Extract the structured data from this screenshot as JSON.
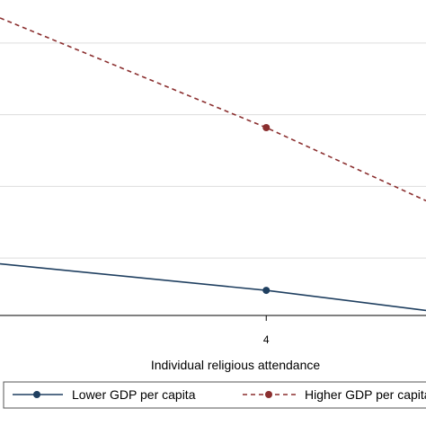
{
  "chart_data": {
    "type": "line",
    "xlabel": "Individual religious attendance",
    "x_ticks": [
      "4"
    ],
    "xlim": [
      1.5,
      5.5
    ],
    "ylim": [
      0,
      4.4
    ],
    "y_gridlines": [
      0.8,
      1.8,
      2.8,
      3.8
    ],
    "grid": true,
    "legend_placement": "bottom",
    "series": [
      {
        "name": "Lower GDP per capita",
        "color": "#1f3f60",
        "style": "solid",
        "marker": "circle",
        "x": [
          1.5,
          4,
          5.5
        ],
        "y": [
          0.72,
          0.35,
          0.07
        ]
      },
      {
        "name": "Higher GDP per capita",
        "color": "#8b2f2f",
        "style": "dashed",
        "marker": "circle",
        "x": [
          1.5,
          4,
          5.5
        ],
        "y": [
          4.15,
          2.62,
          1.6
        ]
      }
    ]
  }
}
